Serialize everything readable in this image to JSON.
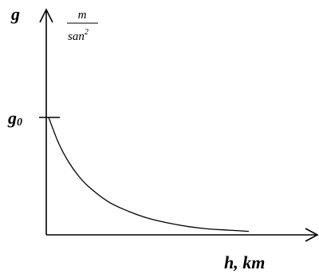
{
  "chart_data": {
    "type": "line",
    "title": "",
    "ylabel": "g",
    "yunit_numerator": "m",
    "yunit_denominator": "san",
    "yunit_exponent": "2",
    "y0_label_base": "g",
    "y0_label_sub": "0",
    "xlabel": "h, km",
    "grid": false,
    "xlim": [
      0,
      1
    ],
    "ylim": [
      0,
      1.4
    ],
    "series": [
      {
        "x": [
          0,
          0.05,
          0.1,
          0.15,
          0.2,
          0.3,
          0.4,
          0.5,
          0.6,
          0.7,
          0.8,
          0.9,
          1.0
        ],
        "y": [
          1.0,
          0.78,
          0.62,
          0.5,
          0.41,
          0.28,
          0.2,
          0.14,
          0.1,
          0.07,
          0.05,
          0.04,
          0.03
        ]
      }
    ]
  }
}
